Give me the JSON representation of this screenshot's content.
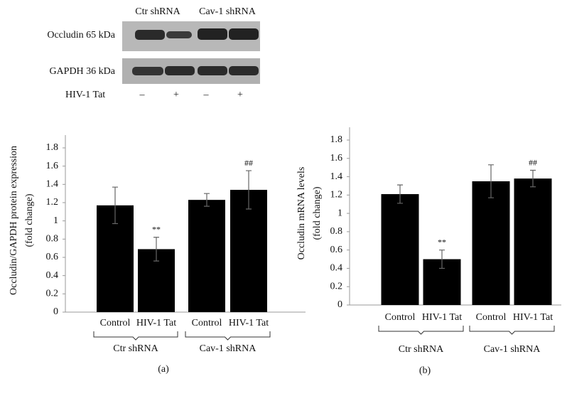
{
  "blot": {
    "column_labels": [
      "Ctr shRNA",
      "Cav-1 shRNA"
    ],
    "rows": [
      "Occludin 65 kDa",
      "GAPDH 36 kDa"
    ],
    "treatment_label": "HIV-1 Tat",
    "treatment_signs": [
      "–",
      "+",
      "–",
      "+"
    ]
  },
  "chart_data": [
    {
      "type": "bar",
      "panel": "(a)",
      "y_label": [
        "Occludin/GAPDH protein expression",
        "(fold change)"
      ],
      "categories": [
        "Control",
        "HIV-1 Tat",
        "Control",
        "HIV-1 Tat"
      ],
      "groups": [
        "Ctr shRNA",
        "Cav-1 shRNA"
      ],
      "series": [
        {
          "color": "#000000",
          "values": [
            1.17,
            0.69,
            1.23,
            1.34
          ],
          "errors": [
            0.2,
            0.13,
            0.07,
            0.21
          ],
          "value_annotations": [
            null,
            "**",
            null,
            "##"
          ]
        }
      ],
      "ylim": [
        0,
        1.8
      ],
      "yticks": [
        0,
        0.2,
        0.4,
        0.6,
        0.8,
        1,
        1.2,
        1.4,
        1.6,
        1.8
      ]
    },
    {
      "type": "bar",
      "panel": "(b)",
      "y_label": [
        "Occludin mRNA levels",
        "(fold change)"
      ],
      "categories": [
        "Control",
        "HIV-1 Tat",
        "Control",
        "HIV-1 Tat"
      ],
      "groups": [
        "Ctr shRNA",
        "Cav-1 shRNA"
      ],
      "series": [
        {
          "color": "#000000",
          "values": [
            1.21,
            0.5,
            1.35,
            1.38
          ],
          "errors": [
            0.1,
            0.1,
            0.18,
            0.09
          ],
          "value_annotations": [
            null,
            "**",
            null,
            "##"
          ]
        }
      ],
      "ylim": [
        0,
        1.8
      ],
      "yticks": [
        0,
        0.2,
        0.4,
        0.6,
        0.8,
        1,
        1.2,
        1.4,
        1.6,
        1.8
      ]
    }
  ]
}
